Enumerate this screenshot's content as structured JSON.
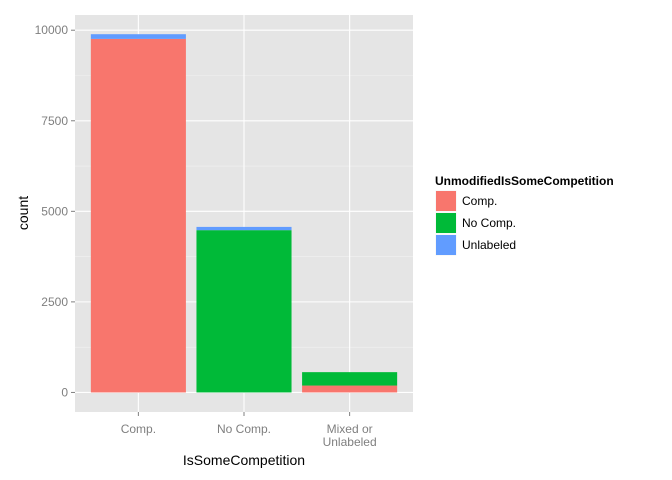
{
  "chart_data": {
    "type": "bar",
    "stacked": true,
    "categories": [
      "Comp.",
      "No Comp.",
      "Mixed or\nUnlabeled"
    ],
    "series": [
      {
        "name": "Comp.",
        "color": "#F8766D",
        "values": [
          9760,
          0,
          190
        ]
      },
      {
        "name": "No Comp.",
        "color": "#00BA38",
        "values": [
          0,
          4480,
          370
        ]
      },
      {
        "name": "Unlabeled",
        "color": "#619CFF",
        "values": [
          130,
          90,
          0
        ]
      }
    ],
    "xlabel": "IsSomeCompetition",
    "ylabel": "count",
    "ylim": [
      -540,
      10420
    ],
    "yticks": [
      0,
      2500,
      5000,
      7500,
      10000
    ],
    "ytick_labels": [
      "0",
      "2500",
      "5000",
      "7500",
      "10000"
    ],
    "grid": true,
    "legend": {
      "title": "UnmodifiedIsSomeCompetition",
      "position": "right"
    }
  }
}
